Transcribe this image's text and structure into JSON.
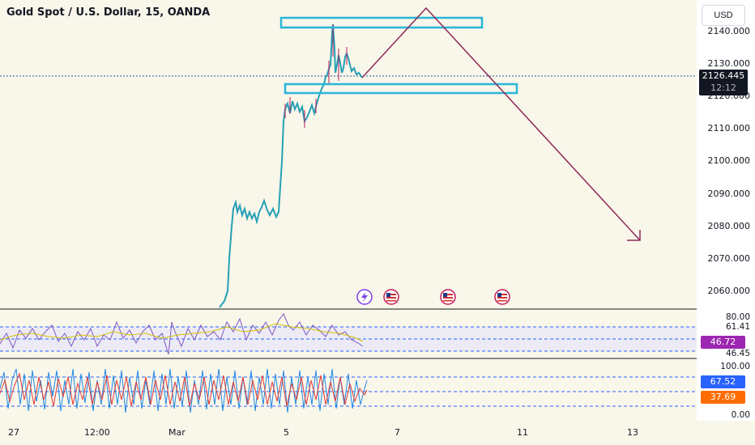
{
  "header": {
    "title": "Gold Spot / U.S. Dollar, 15, OANDA",
    "currency": "USD"
  },
  "price_axis": {
    "labels": [
      "2140.000",
      "2130.000",
      "2120.000",
      "2110.000",
      "2100.000",
      "2090.000",
      "2080.000",
      "2070.000",
      "2060.000"
    ],
    "current_price": "2126.445",
    "countdown": "12:12"
  },
  "rsi_axis": {
    "top_label": "80.00",
    "upper": "61.41",
    "value": "46.72",
    "lower": "46.45",
    "value_color": "#9c27b0"
  },
  "stoch_axis": {
    "top": "100.00",
    "k_value": "67.52",
    "d_value": "37.69",
    "bottom": "0.00",
    "k_color": "#2962ff",
    "d_color": "#ff6d00"
  },
  "time_axis": {
    "labels": [
      "27",
      "12:00",
      "Mar",
      "5",
      "7",
      "11",
      "13"
    ]
  },
  "events": [
    {
      "icon": "lightning-icon",
      "kind": "dividend"
    },
    {
      "icon": "us-flag-icon",
      "kind": "economic-event"
    },
    {
      "icon": "us-flag-icon",
      "kind": "economic-event"
    },
    {
      "icon": "us-flag-icon",
      "kind": "economic-event"
    }
  ],
  "colors": {
    "background": "#f9f6ea",
    "price_line": "#1b5e9e",
    "candle": "#26a0b5",
    "zone": "#29b6d8",
    "projection": "#8e2a57"
  }
}
